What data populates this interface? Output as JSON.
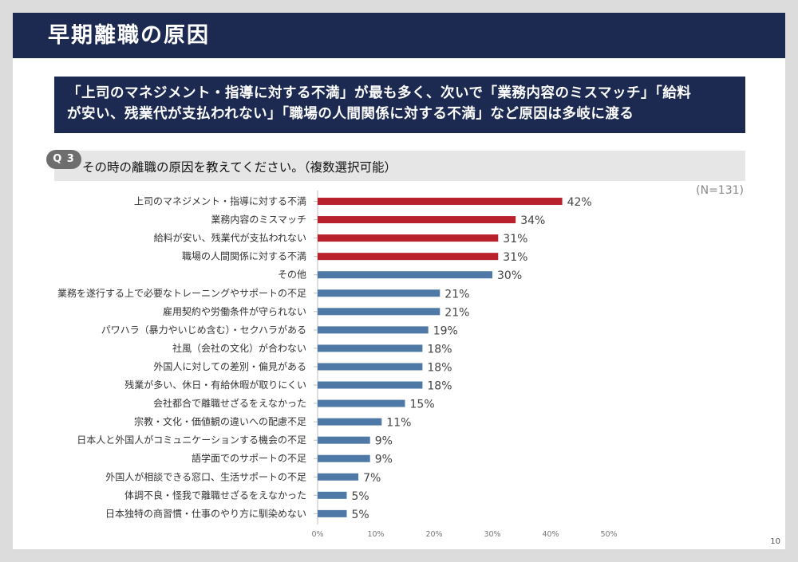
{
  "header": {
    "title": "早期離職の原因"
  },
  "summary": {
    "line1": "「上司のマネジメント・指導に対する不満」が最も多く、次いで「業務内容のミスマッチ」「給料",
    "line2": "が安い、残業代が支払われない」「職場の人間関係に対する不満」など原因は多岐に渡る"
  },
  "question": {
    "badge": "Q 3",
    "text": "その時の離職の原因を教えてください。（複数選択可能）"
  },
  "sample_size": "(N=131)",
  "page_number": "10",
  "colors": {
    "highlight": "#b8202b",
    "normal": "#4e79a7",
    "header_bg": "#1c2a52"
  },
  "chart_data": {
    "type": "bar",
    "orientation": "horizontal",
    "categories": [
      "上司のマネジメント・指導に対する不満",
      "業務内容のミスマッチ",
      "給料が安い、残業代が支払われない",
      "職場の人間関係に対する不満",
      "その他",
      "業務を遂行する上で必要なトレーニングやサポートの不足",
      "雇用契約や労働条件が守られない",
      "パワハラ（暴力やいじめ含む）・セクハラがある",
      "社風（会社の文化）が合わない",
      "外国人に対しての差別・偏見がある",
      "残業が多い、休日・有給休暇が取りにくい",
      "会社都合で離職せざるをえなかった",
      "宗教・文化・価値観の違いへの配慮不足",
      "日本人と外国人がコミュニケーションする機会の不足",
      "語学面でのサポートの不足",
      "外国人が相談できる窓口、生活サポートの不足",
      "体調不良・怪我で離職せざるをえなかった",
      "日本独特の商習慣・仕事のやり方に馴染めない"
    ],
    "values": [
      42,
      34,
      31,
      31,
      30,
      21,
      21,
      19,
      18,
      18,
      18,
      15,
      11,
      9,
      9,
      7,
      5,
      5
    ],
    "value_labels": [
      "42%",
      "34%",
      "31%",
      "31%",
      "30%",
      "21%",
      "21%",
      "19%",
      "18%",
      "18%",
      "18%",
      "15%",
      "11%",
      "9%",
      "9%",
      "7%",
      "5%",
      "5%"
    ],
    "highlighted": [
      true,
      true,
      true,
      true,
      false,
      false,
      false,
      false,
      false,
      false,
      false,
      false,
      false,
      false,
      false,
      false,
      false,
      false
    ],
    "x_ticks": [
      "0%",
      "10%",
      "20%",
      "30%",
      "40%",
      "50%"
    ],
    "xlim": [
      0,
      50
    ],
    "grid": false,
    "legend": "none"
  }
}
